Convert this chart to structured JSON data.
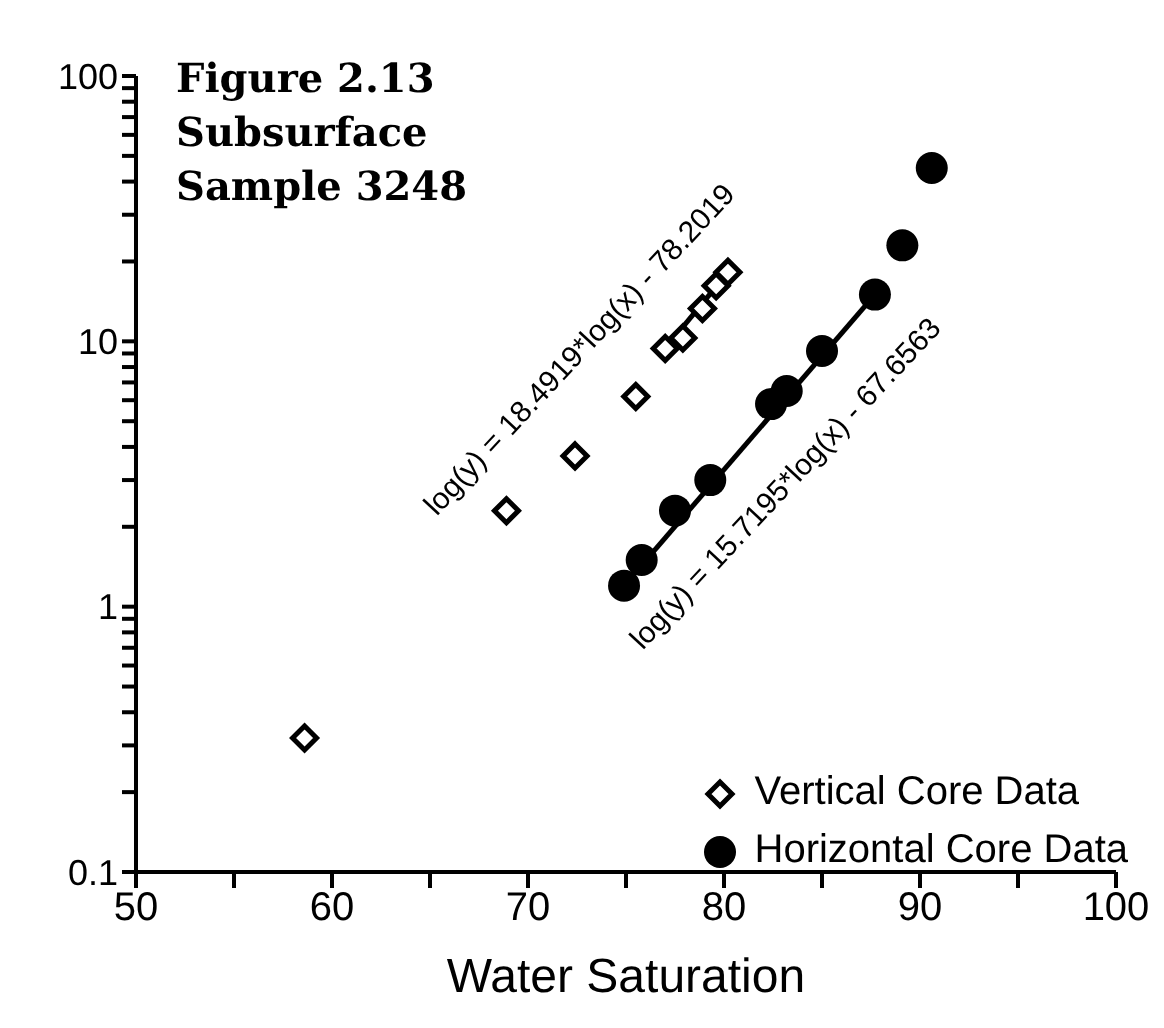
{
  "chart_data": {
    "type": "scatter",
    "title": "Figure 2.13\nSubsurface\nSample 3248",
    "xlabel": "Water Saturation",
    "series": [
      {
        "name": "Vertical Core Data",
        "color": "#000000",
        "marker": "diamond",
        "x": [
          58.6,
          68.9,
          72.4,
          75.5,
          77.0,
          77.9,
          78.9,
          79.6,
          80.2
        ],
        "values": [
          0.32,
          2.3,
          3.7,
          6.2,
          9.4,
          10.3,
          13.3,
          16.2,
          18.2
        ]
      },
      {
        "name": "Horizontal Core Data",
        "color": "#000000",
        "marker": "circle",
        "x": [
          74.9,
          75.8,
          77.5,
          79.3,
          82.4,
          83.2,
          85.0,
          87.7,
          89.1,
          90.6
        ],
        "values": [
          1.2,
          1.5,
          2.3,
          3.0,
          5.8,
          6.5,
          9.2,
          15,
          23,
          45
        ]
      },
      {
        "type": "line",
        "color": "#000000",
        "marker": "none",
        "x": [
          77.0,
          80.2
        ],
        "values": [
          9.4,
          18.2
        ]
      },
      {
        "type": "line",
        "color": "#000000",
        "marker": "none",
        "x": [
          74.9,
          87.7
        ],
        "values": [
          1.2,
          15
        ]
      }
    ],
    "annotations": [
      "log(y) = 18.4919*log(x) - 78.2019",
      "log(y) = 15.7195*log(x) - 67.6563"
    ],
    "log": "y",
    "xlim": [
      50,
      100
    ],
    "ylim": [
      0.1,
      100
    ],
    "xticks": [
      50,
      {
        "value": 55,
        "label": null
      },
      60,
      {
        "value": 65,
        "label": null
      },
      70,
      {
        "value": 75,
        "label": null
      },
      80,
      {
        "value": 85,
        "label": null
      },
      90,
      {
        "value": 95,
        "label": null
      },
      100
    ],
    "yticks": [
      0.1,
      {
        "value": 0.2,
        "label": null
      },
      {
        "value": 0.3,
        "label": null
      },
      {
        "value": 0.4,
        "label": null
      },
      {
        "value": 0.5,
        "label": null
      },
      {
        "value": 0.6,
        "label": null
      },
      {
        "value": 0.7,
        "label": null
      },
      {
        "value": 0.8,
        "label": null
      },
      {
        "value": 0.9,
        "label": null
      },
      1,
      {
        "value": 2,
        "label": null
      },
      {
        "value": 3,
        "label": null
      },
      {
        "value": 4,
        "label": null
      },
      {
        "value": 5,
        "label": null
      },
      {
        "value": 6,
        "label": null
      },
      {
        "value": 7,
        "label": null
      },
      {
        "value": 8,
        "label": null
      },
      {
        "value": 9,
        "label": null
      },
      10,
      {
        "value": 20,
        "label": null
      },
      {
        "value": 30,
        "label": null
      },
      {
        "value": 40,
        "label": null
      },
      {
        "value": 50,
        "label": null
      },
      {
        "value": 60,
        "label": null
      },
      {
        "value": 70,
        "label": null
      },
      {
        "value": 80,
        "label": null
      },
      {
        "value": 90,
        "label": null
      },
      100
    ],
    "grid": false,
    "legend": "bottom right"
  }
}
